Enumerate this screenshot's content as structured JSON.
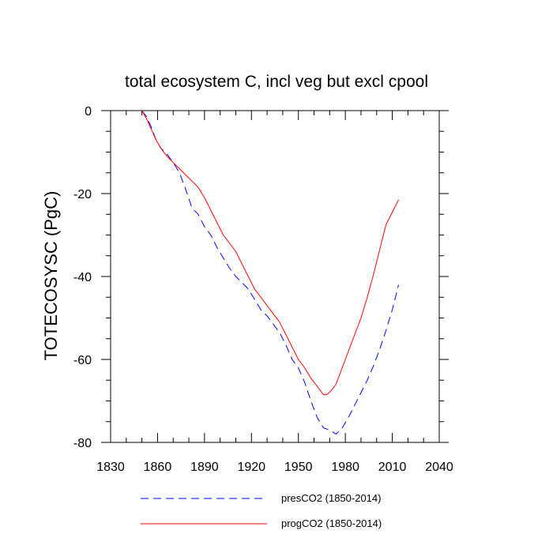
{
  "chart_data": {
    "type": "line",
    "title": "total ecosystem C, incl veg but excl cpool",
    "xlabel": "",
    "ylabel": "TOTECOSYSC  (PgC)",
    "xlim": [
      1830,
      2040
    ],
    "ylim": [
      -80,
      0
    ],
    "xticks": [
      1830,
      1860,
      1890,
      1920,
      1950,
      1980,
      2010,
      2040
    ],
    "yticks": [
      0,
      -20,
      -40,
      -60,
      -80
    ],
    "xtick_labels": [
      "1830",
      "1860",
      "1890",
      "1920",
      "1950",
      "1980",
      "2010",
      "2040"
    ],
    "ytick_labels": [
      "0",
      "-20",
      "-40",
      "-60",
      "-80"
    ],
    "grid": false,
    "legend_position": "bottom",
    "series": [
      {
        "name": "presCO2 (1850-2014)",
        "color": "#0000ff",
        "style": "dashed",
        "x": [
          1850,
          1853,
          1856,
          1859,
          1862,
          1866,
          1870,
          1874,
          1878,
          1882,
          1886,
          1890,
          1894,
          1898,
          1902,
          1906,
          1910,
          1914,
          1918,
          1922,
          1926,
          1930,
          1934,
          1938,
          1942,
          1946,
          1950,
          1954,
          1958,
          1962,
          1966,
          1970,
          1974,
          1978,
          1982,
          1986,
          1990,
          1994,
          1998,
          2002,
          2006,
          2010,
          2014
        ],
        "y": [
          0,
          -1.5,
          -4,
          -7,
          -9,
          -10.5,
          -12.5,
          -15,
          -19,
          -23.5,
          -25,
          -28,
          -30,
          -33,
          -35.5,
          -38,
          -40,
          -41.5,
          -43,
          -45.5,
          -48,
          -49.5,
          -51.5,
          -53.5,
          -56.5,
          -60,
          -62,
          -65.5,
          -70,
          -74,
          -76.5,
          -77,
          -78,
          -76.5,
          -74,
          -71,
          -68,
          -65,
          -61.5,
          -57.5,
          -53,
          -48,
          -42
        ]
      },
      {
        "name": "progCO2 (1850-2014)",
        "color": "#ff0000",
        "style": "solid",
        "x": [
          1850,
          1853,
          1856,
          1859,
          1862,
          1866,
          1870,
          1874,
          1878,
          1882,
          1886,
          1890,
          1894,
          1898,
          1902,
          1906,
          1910,
          1914,
          1918,
          1922,
          1926,
          1930,
          1934,
          1938,
          1942,
          1946,
          1950,
          1954,
          1958,
          1962,
          1966,
          1968,
          1971,
          1974,
          1978,
          1982,
          1986,
          1990,
          1994,
          1998,
          2002,
          2006,
          2010,
          2014
        ],
        "y": [
          0,
          -2,
          -4.5,
          -7,
          -9,
          -11,
          -12.5,
          -14,
          -15.5,
          -17,
          -18.5,
          -21,
          -24,
          -27,
          -30,
          -32,
          -34,
          -37,
          -40,
          -43,
          -45,
          -47,
          -49,
          -51,
          -54,
          -57,
          -60,
          -62,
          -64.5,
          -66.5,
          -68.5,
          -68.5,
          -67.5,
          -66,
          -62,
          -58,
          -54,
          -50,
          -45,
          -39.5,
          -33.5,
          -27.5,
          -24.5,
          -21.5
        ]
      }
    ]
  }
}
